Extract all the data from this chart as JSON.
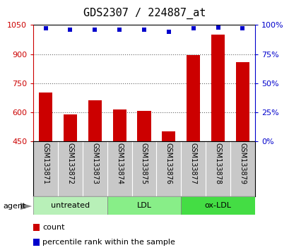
{
  "title": "GDS2307 / 224887_at",
  "samples": [
    "GSM133871",
    "GSM133872",
    "GSM133873",
    "GSM133874",
    "GSM133875",
    "GSM133876",
    "GSM133877",
    "GSM133878",
    "GSM133879"
  ],
  "counts": [
    700,
    590,
    660,
    615,
    608,
    500,
    895,
    1000,
    860
  ],
  "percentiles": [
    97,
    96,
    96,
    96,
    96,
    94,
    97,
    98,
    97
  ],
  "groups": [
    {
      "label": "untreated",
      "start": 0,
      "end": 3,
      "color": "#b8f0b8"
    },
    {
      "label": "LDL",
      "start": 3,
      "end": 6,
      "color": "#88ee88"
    },
    {
      "label": "ox-LDL",
      "start": 6,
      "end": 9,
      "color": "#44dd44"
    }
  ],
  "ylim_left": [
    450,
    1050
  ],
  "ylim_right": [
    0,
    100
  ],
  "yticks_left": [
    450,
    600,
    750,
    900,
    1050
  ],
  "yticks_right": [
    0,
    25,
    50,
    75,
    100
  ],
  "bar_color": "#cc0000",
  "dot_color": "#0000cc",
  "background_sample_row": "#c8c8c8",
  "title_fontsize": 11,
  "tick_fontsize": 8,
  "legend_fontsize": 8,
  "group_label_fontsize": 8,
  "sample_fontsize": 7,
  "agent_label": "agent"
}
